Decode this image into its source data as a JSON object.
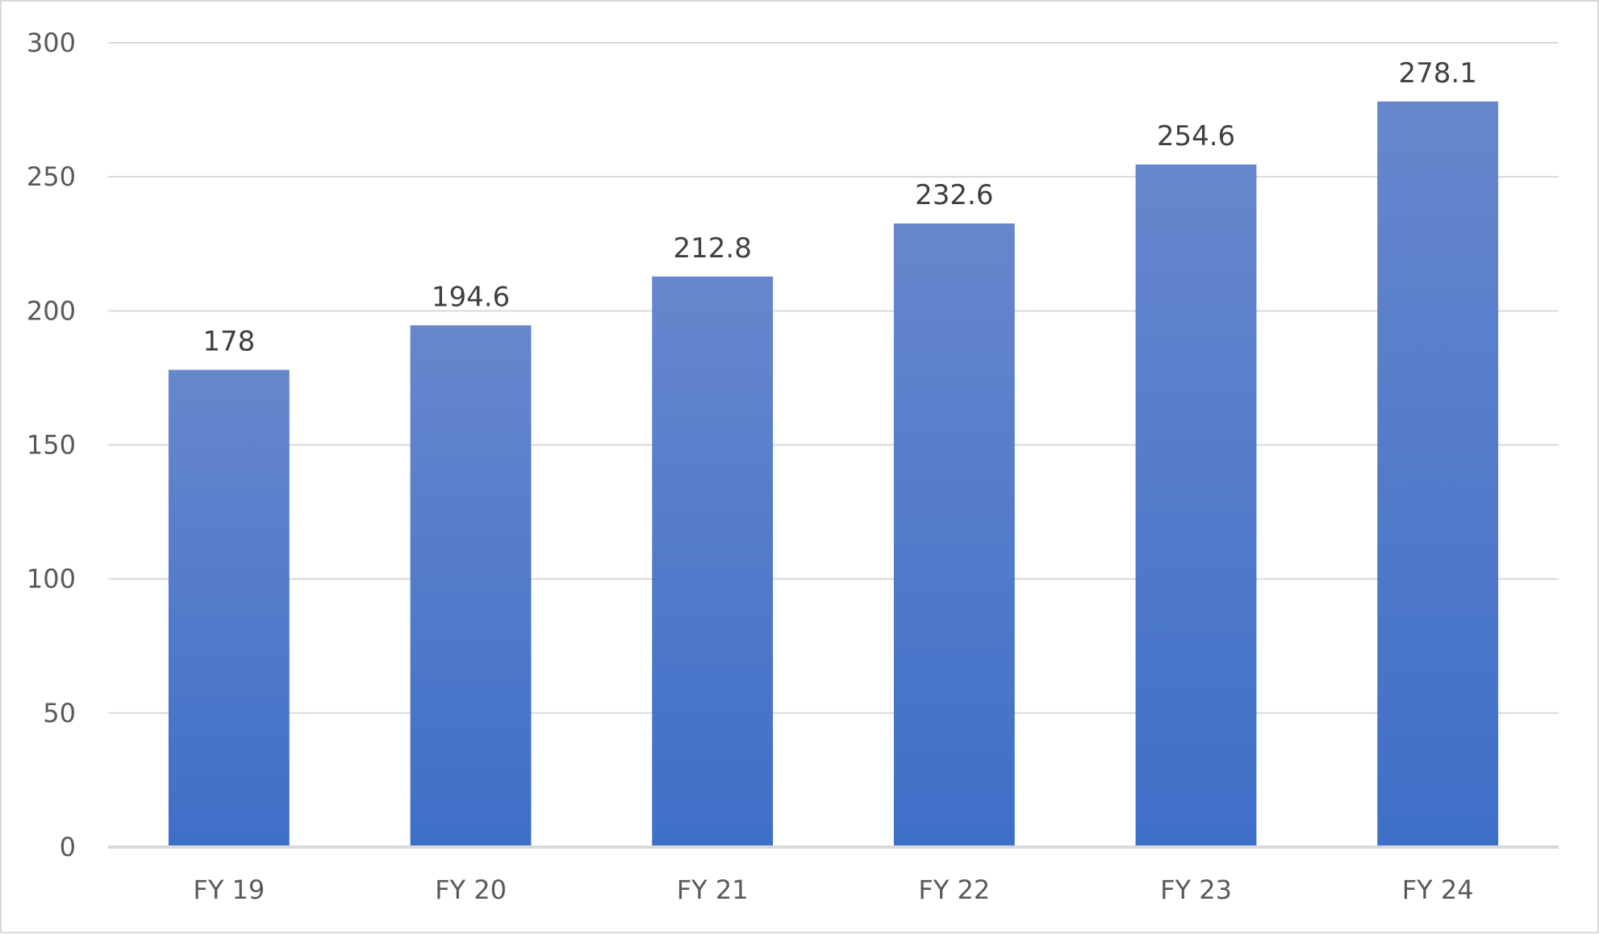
{
  "chart_data": {
    "type": "bar",
    "title": "",
    "xlabel": "",
    "ylabel": "",
    "categories": [
      "FY 19",
      "FY 20",
      "FY 21",
      "FY 22",
      "FY 23",
      "FY 24"
    ],
    "values": [
      178,
      194.6,
      212.8,
      232.6,
      254.6,
      278.1
    ],
    "data_labels": [
      "178",
      "194.6",
      "212.8",
      "232.6",
      "254.6",
      "278.1"
    ],
    "ylim": [
      0,
      300
    ],
    "yticks": [
      0,
      50,
      100,
      150,
      200,
      250,
      300
    ],
    "ytick_labels": [
      "0",
      "50",
      "100",
      "150",
      "200",
      "250",
      "300"
    ],
    "grid": true,
    "legend": "none",
    "colors": {
      "bar_top": "#6787cc",
      "bar_bottom": "#3e6fc8",
      "grid": "#d9d9d9",
      "axis": "#d9d9d9",
      "tick_text": "#595959",
      "label_text": "#404040",
      "frame": "#d9d9d9"
    }
  }
}
